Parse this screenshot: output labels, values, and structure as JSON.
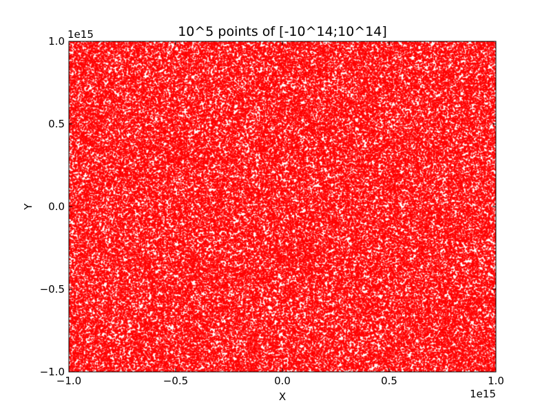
{
  "chart_data": {
    "type": "scatter",
    "title": "10^5 points of [-10^14;10^14]",
    "xlabel": "X",
    "ylabel": "Y",
    "x_scale_label": "1e15",
    "y_scale_label": "1e15",
    "xlim": [
      -1.0,
      1.0
    ],
    "ylim": [
      -1.0,
      1.0
    ],
    "x_ticks": [
      -1.0,
      -0.5,
      0.0,
      0.5,
      1.0
    ],
    "y_ticks": [
      -1.0,
      -0.5,
      0.0,
      0.5,
      1.0
    ],
    "x_tick_labels": [
      "−1.0",
      "−0.5",
      "0.0",
      "0.5",
      "1.0"
    ],
    "y_tick_labels": [
      "−1.0",
      "−0.5",
      "0.0",
      "0.5",
      "1.0"
    ],
    "point_count": 100000,
    "distribution": "uniform",
    "marker_color": "#ff0000",
    "grid": false,
    "legend": "none"
  }
}
